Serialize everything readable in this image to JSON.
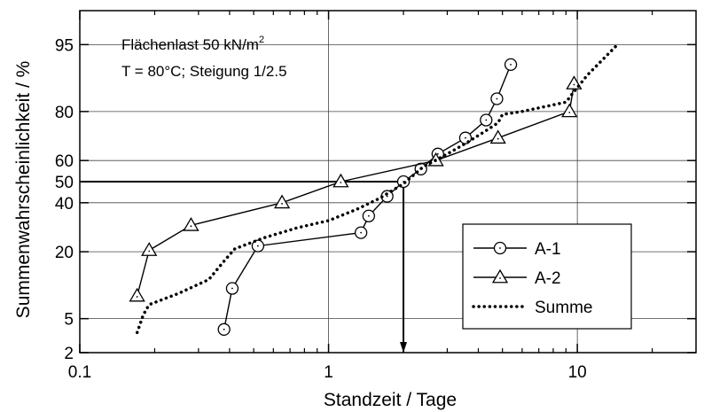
{
  "chart_data": {
    "type": "scatter",
    "title": "",
    "xlabel": "Standzeit / Tage",
    "ylabel": "Summenwahrscheinlichkeit / %",
    "x_scale": "log",
    "y_scale": "probability",
    "xlim": [
      0.1,
      30
    ],
    "ylim": [
      2,
      98
    ],
    "x_ticks": [
      0.1,
      1,
      10
    ],
    "x_tick_labels": [
      "0.1",
      "1",
      "10"
    ],
    "y_ticks": [
      2,
      5,
      20,
      40,
      50,
      60,
      80,
      95
    ],
    "y_tick_labels": [
      "2",
      "5",
      "20",
      "40",
      "50",
      "60",
      "80",
      "95"
    ],
    "grid": true,
    "annotations": {
      "line1_prefix": "Flächenlast 50 kN/m",
      "line1_sup": "2",
      "line2": "T = 80°C; Steigung 1/2.5"
    },
    "median_reference": {
      "x": 2.0,
      "y": 50
    },
    "legend": {
      "position": "bottom-right"
    },
    "series": [
      {
        "name": "A-1",
        "marker": "circle",
        "line": "solid",
        "points": [
          {
            "x": 0.38,
            "y": 3.8
          },
          {
            "x": 0.41,
            "y": 10
          },
          {
            "x": 0.52,
            "y": 22
          },
          {
            "x": 1.35,
            "y": 27
          },
          {
            "x": 1.45,
            "y": 34
          },
          {
            "x": 1.72,
            "y": 43
          },
          {
            "x": 2.0,
            "y": 50
          },
          {
            "x": 2.35,
            "y": 56
          },
          {
            "x": 2.75,
            "y": 63
          },
          {
            "x": 3.55,
            "y": 70
          },
          {
            "x": 4.3,
            "y": 77
          },
          {
            "x": 4.75,
            "y": 84
          },
          {
            "x": 5.4,
            "y": 92
          }
        ]
      },
      {
        "name": "A-2",
        "marker": "triangle",
        "line": "solid",
        "points": [
          {
            "x": 0.17,
            "y": 8.5
          },
          {
            "x": 0.19,
            "y": 20.5
          },
          {
            "x": 0.28,
            "y": 30
          },
          {
            "x": 0.65,
            "y": 40
          },
          {
            "x": 1.12,
            "y": 50
          },
          {
            "x": 2.7,
            "y": 60
          },
          {
            "x": 4.8,
            "y": 70
          },
          {
            "x": 9.3,
            "y": 80
          },
          {
            "x": 9.7,
            "y": 88
          }
        ]
      },
      {
        "name": "Summe",
        "marker": "none",
        "line": "dotted",
        "points": [
          {
            "x": 0.17,
            "y": 3.5
          },
          {
            "x": 0.18,
            "y": 5.5
          },
          {
            "x": 0.19,
            "y": 7
          },
          {
            "x": 0.25,
            "y": 9
          },
          {
            "x": 0.33,
            "y": 12
          },
          {
            "x": 0.38,
            "y": 17
          },
          {
            "x": 0.42,
            "y": 21
          },
          {
            "x": 0.55,
            "y": 25
          },
          {
            "x": 0.75,
            "y": 29
          },
          {
            "x": 1.0,
            "y": 32
          },
          {
            "x": 1.3,
            "y": 37
          },
          {
            "x": 1.6,
            "y": 42
          },
          {
            "x": 2.0,
            "y": 49
          },
          {
            "x": 2.4,
            "y": 57
          },
          {
            "x": 3.0,
            "y": 63
          },
          {
            "x": 3.6,
            "y": 68
          },
          {
            "x": 4.3,
            "y": 73
          },
          {
            "x": 4.8,
            "y": 76
          },
          {
            "x": 5.0,
            "y": 79
          },
          {
            "x": 6.0,
            "y": 80
          },
          {
            "x": 9.0,
            "y": 83
          },
          {
            "x": 9.7,
            "y": 86
          },
          {
            "x": 11.0,
            "y": 90
          },
          {
            "x": 14.5,
            "y": 95
          }
        ]
      }
    ]
  }
}
